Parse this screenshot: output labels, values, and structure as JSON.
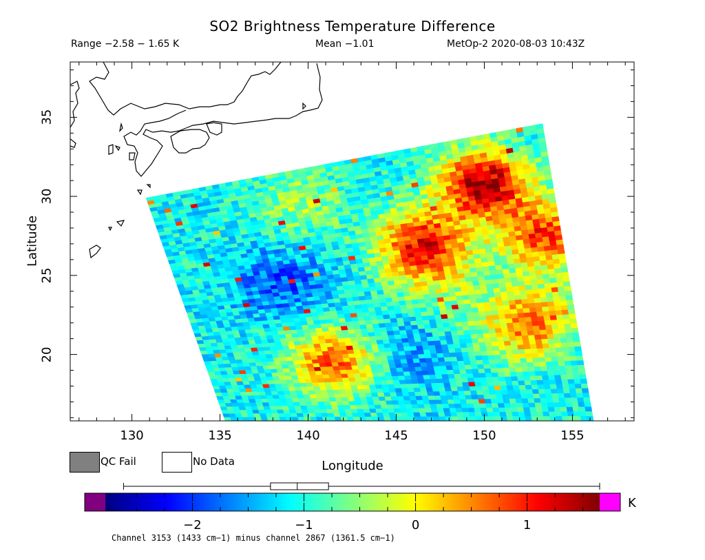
{
  "title": "SO2 Brightness Temperature Difference",
  "header": {
    "range": "Range −2.58 − 1.65 K",
    "mean": "Mean −1.01",
    "satellite_time": "MetOp-2 2020-08-03 10:43Z"
  },
  "axes": {
    "xlabel": "Longitude",
    "ylabel": "Latitude",
    "xlim": [
      126.5,
      158.5
    ],
    "ylim": [
      15.8,
      38.5
    ],
    "xticks": [
      "130",
      "135",
      "140",
      "145",
      "150",
      "155"
    ],
    "xtick_values": [
      130,
      135,
      140,
      145,
      150,
      155
    ],
    "yticks": [
      "20",
      "25",
      "30",
      "35"
    ],
    "ytick_values": [
      20,
      25,
      30,
      35
    ]
  },
  "legend": {
    "qc_fail": "QC Fail",
    "qc_fail_color": "#808080",
    "no_data": "No Data",
    "no_data_color": "#ffffff"
  },
  "colorbar": {
    "min": -2.78,
    "max": 1.65,
    "ticks": [
      "−2",
      "−1",
      "0",
      "1"
    ],
    "tick_values": [
      -2,
      -1,
      0,
      1
    ],
    "unit": "K",
    "under_color": "#800080",
    "over_color": "#ff00ff",
    "colors": [
      "#000080",
      "#0000ff",
      "#0080ff",
      "#00ffff",
      "#80ff80",
      "#ffff00",
      "#ff8000",
      "#ff0000",
      "#800000"
    ],
    "box_plot": {
      "min": -2.58,
      "q1": -1.3,
      "median": -1.06,
      "q3": -0.78,
      "max": 1.65
    }
  },
  "footnote": "Channel 3153 (1433 cm−1) minus channel 2867 (1361.5 cm−1)",
  "chart_data": {
    "type": "heatmap",
    "title": "SO2 Brightness Temperature Difference",
    "xlabel": "Longitude",
    "ylabel": "Latitude",
    "swath": {
      "top_left": [
        130.8,
        29.9
      ],
      "top_right": [
        153.3,
        34.6
      ],
      "bottom_left": [
        135.3,
        15.8
      ],
      "bottom_right": [
        156.2,
        15.8
      ]
    },
    "value_range": [
      -2.58,
      1.65
    ],
    "mean": -1.01,
    "typical_value": -1.1,
    "features": [
      {
        "lon": 138.5,
        "lat": 24.5,
        "value": -1.9
      },
      {
        "lon": 145.5,
        "lat": 20.0,
        "value": -1.6
      },
      {
        "lon": 139.5,
        "lat": 29.5,
        "value": -0.4
      },
      {
        "lon": 153.5,
        "lat": 27.5,
        "value": 0.8
      },
      {
        "lon": 153.0,
        "lat": 22.5,
        "value": -0.2
      },
      {
        "lon": 152.0,
        "lat": 21.5,
        "value": -0.1
      },
      {
        "lon": 141.5,
        "lat": 19.5,
        "value": 0.7
      },
      {
        "lon": 146.5,
        "lat": 27.0,
        "value": 1.0
      },
      {
        "lon": 150.0,
        "lat": 30.8,
        "value": 1.5
      },
      {
        "lon": 147.5,
        "lat": 24.5,
        "value": -0.5
      }
    ]
  }
}
